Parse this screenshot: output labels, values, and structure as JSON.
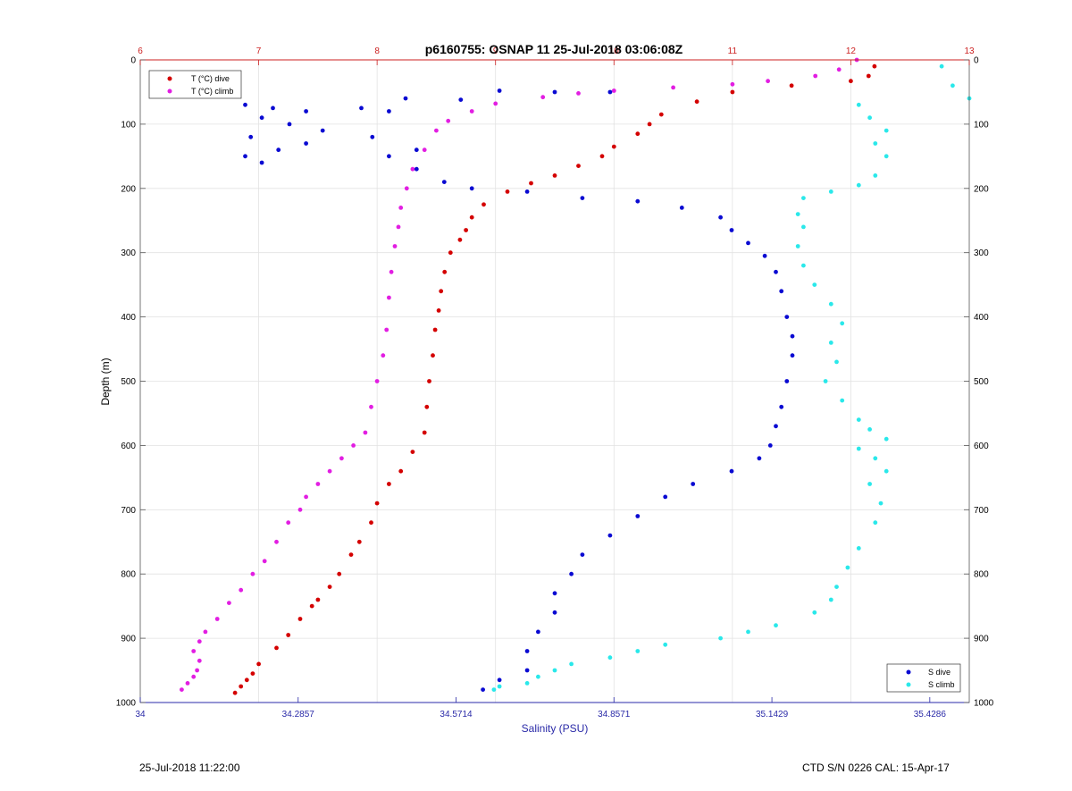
{
  "chart_data": {
    "type": "scatter",
    "title": "p6160755: OSNAP 11 25-Jul-2018 03:06:08Z",
    "ylabel": "Depth (m)",
    "xlabel_bottom": "Salinity (PSU)",
    "xlabel_top": "",
    "ylim": [
      0,
      1000
    ],
    "y_reversed": true,
    "yticks": [
      "0",
      "100",
      "200",
      "300",
      "400",
      "500",
      "600",
      "700",
      "800",
      "900",
      "1000"
    ],
    "xlim_top": [
      6,
      13
    ],
    "xticks_top": [
      "6",
      "7",
      "8",
      "9",
      "10",
      "11",
      "12",
      "13"
    ],
    "xlim_bottom": [
      34,
      35.5
    ],
    "xticks_bottom": [
      "34",
      "34.2857",
      "34.5714",
      "34.8571",
      "35.1429",
      "35.4286"
    ],
    "grid": true,
    "colors": {
      "t_dive": "#d40000",
      "t_climb": "#e21ee2",
      "s_dive": "#0a0ad2",
      "s_climb": "#2ae8ea",
      "top_axis": "#cc2222",
      "bottom_axis": "#2a2aa8"
    },
    "legends": [
      {
        "placement": "top-left",
        "entries": [
          "T (°C) dive",
          "T (°C) climb"
        ]
      },
      {
        "placement": "bottom-right",
        "entries": [
          "S dive",
          "S climb"
        ]
      }
    ],
    "series": [
      {
        "name": "T (°C) dive",
        "axis": "top",
        "points": [
          [
            12.2,
            10
          ],
          [
            12.15,
            25
          ],
          [
            12.0,
            33
          ],
          [
            11.5,
            40
          ],
          [
            11.0,
            50
          ],
          [
            10.7,
            65
          ],
          [
            10.4,
            85
          ],
          [
            10.3,
            100
          ],
          [
            10.2,
            115
          ],
          [
            10.0,
            135
          ],
          [
            9.9,
            150
          ],
          [
            9.7,
            165
          ],
          [
            9.5,
            180
          ],
          [
            9.3,
            192
          ],
          [
            9.1,
            205
          ],
          [
            8.9,
            225
          ],
          [
            8.8,
            245
          ],
          [
            8.75,
            265
          ],
          [
            8.7,
            280
          ],
          [
            8.62,
            300
          ],
          [
            8.57,
            330
          ],
          [
            8.54,
            360
          ],
          [
            8.52,
            390
          ],
          [
            8.49,
            420
          ],
          [
            8.47,
            460
          ],
          [
            8.44,
            500
          ],
          [
            8.42,
            540
          ],
          [
            8.4,
            580
          ],
          [
            8.3,
            610
          ],
          [
            8.2,
            640
          ],
          [
            8.1,
            660
          ],
          [
            8.0,
            690
          ],
          [
            7.95,
            720
          ],
          [
            7.85,
            750
          ],
          [
            7.78,
            770
          ],
          [
            7.68,
            800
          ],
          [
            7.6,
            820
          ],
          [
            7.5,
            840
          ],
          [
            7.45,
            850
          ],
          [
            7.35,
            870
          ],
          [
            7.25,
            895
          ],
          [
            7.15,
            915
          ],
          [
            7.0,
            940
          ],
          [
            6.95,
            955
          ],
          [
            6.9,
            965
          ],
          [
            6.85,
            975
          ],
          [
            6.8,
            985
          ]
        ]
      },
      {
        "name": "T (°C) climb",
        "axis": "top",
        "points": [
          [
            12.05,
            0
          ],
          [
            11.9,
            15
          ],
          [
            11.7,
            25
          ],
          [
            11.3,
            33
          ],
          [
            11.0,
            38
          ],
          [
            10.5,
            43
          ],
          [
            10.0,
            48
          ],
          [
            9.7,
            52
          ],
          [
            9.4,
            58
          ],
          [
            9.0,
            68
          ],
          [
            8.8,
            80
          ],
          [
            8.6,
            95
          ],
          [
            8.5,
            110
          ],
          [
            8.4,
            140
          ],
          [
            8.3,
            170
          ],
          [
            8.25,
            200
          ],
          [
            8.2,
            230
          ],
          [
            8.18,
            260
          ],
          [
            8.15,
            290
          ],
          [
            8.12,
            330
          ],
          [
            8.1,
            370
          ],
          [
            8.08,
            420
          ],
          [
            8.05,
            460
          ],
          [
            8.0,
            500
          ],
          [
            7.95,
            540
          ],
          [
            7.9,
            580
          ],
          [
            7.8,
            600
          ],
          [
            7.7,
            620
          ],
          [
            7.6,
            640
          ],
          [
            7.5,
            660
          ],
          [
            7.4,
            680
          ],
          [
            7.35,
            700
          ],
          [
            7.25,
            720
          ],
          [
            7.15,
            750
          ],
          [
            7.05,
            780
          ],
          [
            6.95,
            800
          ],
          [
            6.85,
            825
          ],
          [
            6.75,
            845
          ],
          [
            6.65,
            870
          ],
          [
            6.55,
            890
          ],
          [
            6.5,
            905
          ],
          [
            6.45,
            920
          ],
          [
            6.5,
            935
          ],
          [
            6.48,
            950
          ],
          [
            6.45,
            960
          ],
          [
            6.4,
            970
          ],
          [
            6.35,
            980
          ]
        ]
      },
      {
        "name": "S dive",
        "axis": "bottom",
        "points": [
          [
            34.19,
            70
          ],
          [
            34.24,
            75
          ],
          [
            34.3,
            80
          ],
          [
            34.22,
            90
          ],
          [
            34.27,
            100
          ],
          [
            34.33,
            110
          ],
          [
            34.2,
            120
          ],
          [
            34.3,
            130
          ],
          [
            34.25,
            140
          ],
          [
            34.19,
            150
          ],
          [
            34.22,
            160
          ],
          [
            34.4,
            75
          ],
          [
            34.45,
            80
          ],
          [
            34.48,
            60
          ],
          [
            34.58,
            62
          ],
          [
            34.65,
            48
          ],
          [
            34.75,
            50
          ],
          [
            34.85,
            50
          ],
          [
            34.42,
            120
          ],
          [
            34.5,
            140
          ],
          [
            34.45,
            150
          ],
          [
            34.5,
            170
          ],
          [
            34.55,
            190
          ],
          [
            34.6,
            200
          ],
          [
            34.7,
            205
          ],
          [
            34.8,
            215
          ],
          [
            34.9,
            220
          ],
          [
            34.98,
            230
          ],
          [
            35.05,
            245
          ],
          [
            35.07,
            265
          ],
          [
            35.1,
            285
          ],
          [
            35.13,
            305
          ],
          [
            35.15,
            330
          ],
          [
            35.16,
            360
          ],
          [
            35.17,
            400
          ],
          [
            35.18,
            430
          ],
          [
            35.18,
            460
          ],
          [
            35.17,
            500
          ],
          [
            35.16,
            540
          ],
          [
            35.15,
            570
          ],
          [
            35.14,
            600
          ],
          [
            35.12,
            620
          ],
          [
            35.07,
            640
          ],
          [
            35.0,
            660
          ],
          [
            34.95,
            680
          ],
          [
            34.9,
            710
          ],
          [
            34.85,
            740
          ],
          [
            34.8,
            770
          ],
          [
            34.78,
            800
          ],
          [
            34.75,
            830
          ],
          [
            34.75,
            860
          ],
          [
            34.72,
            890
          ],
          [
            34.7,
            920
          ],
          [
            34.7,
            950
          ],
          [
            34.65,
            965
          ],
          [
            34.62,
            980
          ]
        ]
      },
      {
        "name": "S climb",
        "axis": "bottom",
        "points": [
          [
            35.45,
            10
          ],
          [
            35.47,
            40
          ],
          [
            35.5,
            60
          ],
          [
            35.3,
            70
          ],
          [
            35.32,
            90
          ],
          [
            35.35,
            110
          ],
          [
            35.33,
            130
          ],
          [
            35.35,
            150
          ],
          [
            35.33,
            180
          ],
          [
            35.3,
            195
          ],
          [
            35.25,
            205
          ],
          [
            35.2,
            215
          ],
          [
            35.19,
            240
          ],
          [
            35.2,
            260
          ],
          [
            35.19,
            290
          ],
          [
            35.2,
            320
          ],
          [
            35.22,
            350
          ],
          [
            35.25,
            380
          ],
          [
            35.27,
            410
          ],
          [
            35.25,
            440
          ],
          [
            35.26,
            470
          ],
          [
            35.24,
            500
          ],
          [
            35.27,
            530
          ],
          [
            35.3,
            560
          ],
          [
            35.32,
            575
          ],
          [
            35.35,
            590
          ],
          [
            35.3,
            605
          ],
          [
            35.33,
            620
          ],
          [
            35.35,
            640
          ],
          [
            35.32,
            660
          ],
          [
            35.34,
            690
          ],
          [
            35.33,
            720
          ],
          [
            35.3,
            760
          ],
          [
            35.28,
            790
          ],
          [
            35.26,
            820
          ],
          [
            35.25,
            840
          ],
          [
            35.22,
            860
          ],
          [
            35.15,
            880
          ],
          [
            35.1,
            890
          ],
          [
            35.05,
            900
          ],
          [
            34.95,
            910
          ],
          [
            34.9,
            920
          ],
          [
            34.85,
            930
          ],
          [
            34.78,
            940
          ],
          [
            34.75,
            950
          ],
          [
            34.72,
            960
          ],
          [
            34.7,
            970
          ],
          [
            34.65,
            975
          ],
          [
            34.64,
            980
          ]
        ]
      }
    ]
  },
  "footer": {
    "left": "25-Jul-2018 11:22:00",
    "right": "CTD S/N 0226  CAL: 15-Apr-17"
  }
}
